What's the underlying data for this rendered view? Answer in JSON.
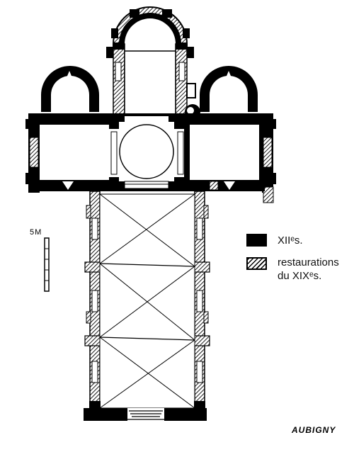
{
  "legend": {
    "items": [
      {
        "key": "black",
        "label": "XIIᵉs."
      },
      {
        "key": "hatch",
        "label": "restaurations",
        "label_line2": "du XIXᵉs."
      }
    ]
  },
  "scale": {
    "label": "5M"
  },
  "site_name": "AUBIGNY",
  "colors": {
    "wall": "#000000",
    "background": "#ffffff"
  }
}
